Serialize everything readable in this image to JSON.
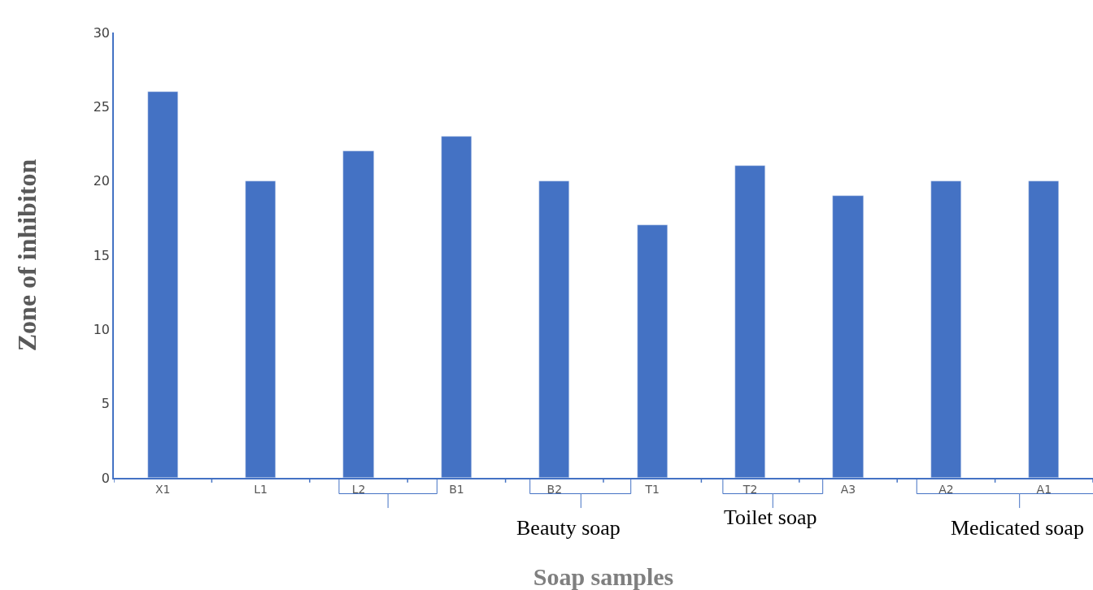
{
  "chart_data": {
    "type": "bar",
    "xlabel": "Soap samples",
    "ylabel": "Zone of inhibiton",
    "categories": [
      "X1",
      "L1",
      "L2",
      "B1",
      "B2",
      "T1",
      "T2",
      "A3",
      "A2",
      "A1"
    ],
    "values": [
      26,
      20,
      22,
      23,
      20,
      17,
      21,
      19,
      20,
      20
    ],
    "color": "#4472c4",
    "ylim": [
      0,
      30
    ],
    "yticks": [
      0,
      5,
      10,
      15,
      20,
      25,
      30
    ],
    "annotations": [
      "Beauty soap",
      "Toilet soap",
      "Medicated soap"
    ]
  }
}
